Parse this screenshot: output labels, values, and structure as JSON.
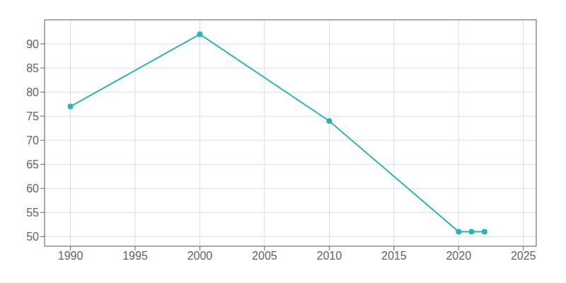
{
  "chart_data": {
    "type": "line",
    "x": [
      1990,
      2000,
      2010,
      2020,
      2021,
      2022
    ],
    "values": [
      77,
      92,
      74,
      51,
      51,
      51
    ],
    "color": "#2ab5b5",
    "marker": "circle",
    "xlim": [
      1988,
      2026
    ],
    "ylim": [
      48,
      95
    ],
    "xticks": [
      1990,
      1995,
      2000,
      2005,
      2010,
      2015,
      2020,
      2025
    ],
    "yticks": [
      50,
      55,
      60,
      65,
      70,
      75,
      80,
      85,
      90
    ],
    "grid": true
  }
}
